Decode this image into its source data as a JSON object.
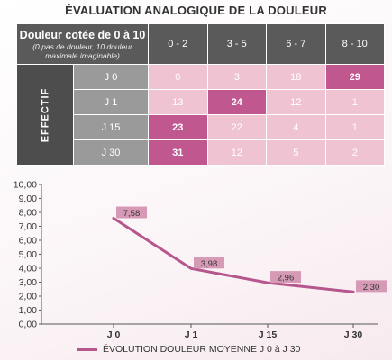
{
  "page": {
    "title": "ÉVALUATION ANALOGIQUE DE LA DOULEUR"
  },
  "table": {
    "header_label": "Douleur cotée de 0 à 10",
    "header_sublabel": "(0 pas de douleur, 10 douleur maximale imaginable)",
    "row_group_label": "EFFECTIF",
    "columns": [
      "0 - 2",
      "3 - 5",
      "6 - 7",
      "8 - 10"
    ],
    "rows": [
      {
        "label": "J 0",
        "values": [
          "0",
          "3",
          "18",
          "29"
        ],
        "highlight": 3
      },
      {
        "label": "J 1",
        "values": [
          "13",
          "24",
          "12",
          "1"
        ],
        "highlight": 1
      },
      {
        "label": "J 15",
        "values": [
          "23",
          "22",
          "4",
          "1"
        ],
        "highlight": 0
      },
      {
        "label": "J 30",
        "values": [
          "31",
          "12",
          "5",
          "2"
        ],
        "highlight": 0
      }
    ],
    "colors": {
      "header": "#5a5a5a",
      "day": "#9a9a9a",
      "cell": "#f0c3d3",
      "highlight": "#c0578e"
    }
  },
  "chart_data": {
    "type": "line",
    "categories": [
      "J 0",
      "J 1",
      "J 15",
      "J 30"
    ],
    "series": [
      {
        "name": "ÉVOLUTION DOULEUR MOYENNE J 0 à J 30",
        "values": [
          7.58,
          3.98,
          2.96,
          2.3
        ],
        "color": "#b5568c"
      }
    ],
    "data_labels": [
      "7,58",
      "3,98",
      "2,96",
      "2,30"
    ],
    "yticks": [
      "0,00",
      "1,00",
      "2,00",
      "3,00",
      "4,00",
      "5,00",
      "6,00",
      "7,00",
      "8,00",
      "9,00",
      "10,00"
    ],
    "ylim": [
      0,
      10
    ],
    "grid": false,
    "legend_position": "bottom"
  }
}
